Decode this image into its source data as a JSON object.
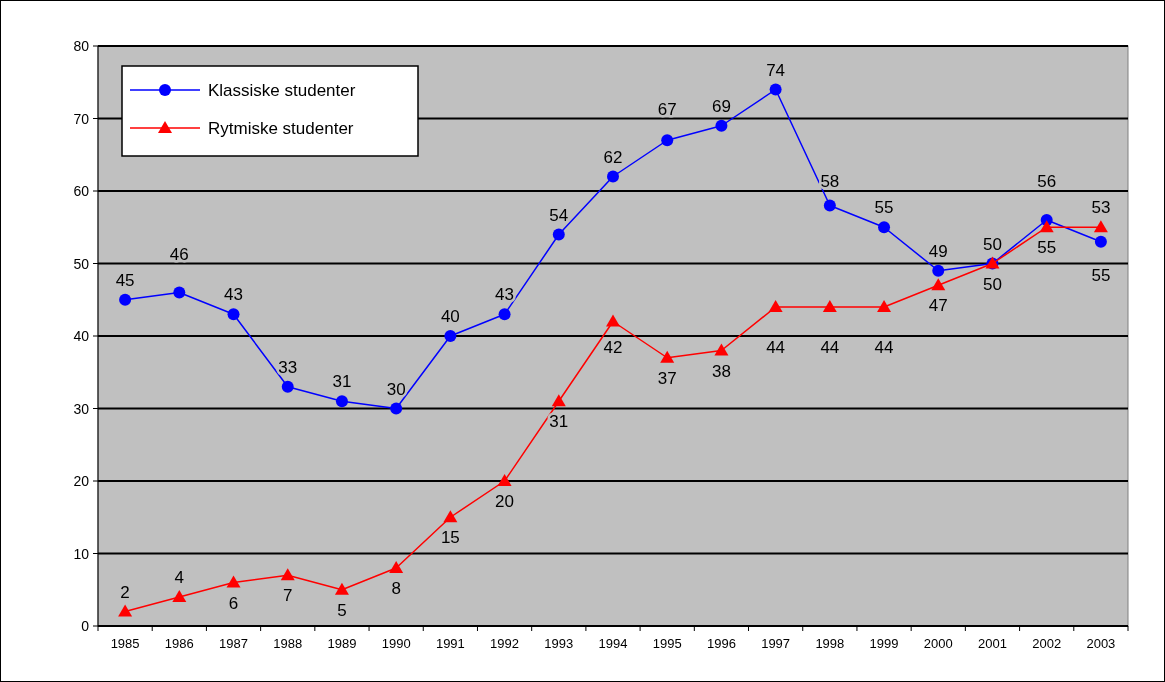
{
  "chart_data": {
    "type": "line",
    "categories": [
      "1985",
      "1986",
      "1987",
      "1988",
      "1989",
      "1990",
      "1991",
      "1992",
      "1993",
      "1994",
      "1995",
      "1996",
      "1997",
      "1998",
      "1999",
      "2000",
      "2001",
      "2002",
      "2003"
    ],
    "series": [
      {
        "name": "Klassiske studenter",
        "color": "#0000ff",
        "marker": "circle",
        "values": [
          45,
          46,
          43,
          33,
          31,
          30,
          40,
          43,
          54,
          62,
          67,
          69,
          74,
          58,
          55,
          49,
          50,
          56,
          53
        ]
      },
      {
        "name": "Rytmiske studenter",
        "color": "#ff0000",
        "marker": "triangle",
        "values": [
          2,
          4,
          6,
          7,
          5,
          8,
          15,
          20,
          31,
          42,
          37,
          38,
          44,
          44,
          44,
          47,
          50,
          55,
          55
        ]
      }
    ],
    "ylim": [
      0,
      80
    ],
    "yticks": [
      0,
      10,
      20,
      30,
      40,
      50,
      60,
      70,
      80
    ],
    "grid": "y",
    "legend": "top left",
    "data_labels": true
  }
}
